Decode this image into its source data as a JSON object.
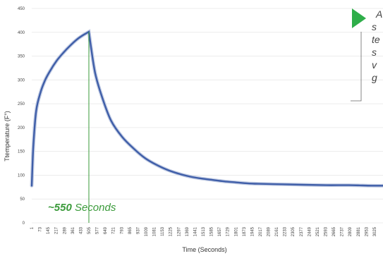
{
  "chart_data": {
    "type": "line",
    "xlabel": "Time (Seconds)",
    "ylabel": "Ttemperature (F°)",
    "ylim": [
      0,
      450
    ],
    "yticks": [
      0,
      50,
      100,
      150,
      200,
      250,
      300,
      350,
      400,
      450
    ],
    "xlim": [
      1,
      3100
    ],
    "xticks": [
      1,
      73,
      145,
      217,
      289,
      361,
      433,
      505,
      577,
      649,
      721,
      793,
      865,
      937,
      1009,
      1081,
      1153,
      1225,
      1297,
      1369,
      1441,
      1513,
      1585,
      1657,
      1729,
      1801,
      1873,
      1945,
      2017,
      2089,
      2161,
      2233,
      2305,
      2377,
      2449,
      2521,
      2593,
      2665,
      2737,
      2809,
      2881,
      2953,
      3025
    ],
    "grid": true,
    "series": [
      {
        "color": "#3f5ea8",
        "x": [
          1,
          15,
          40,
          80,
          120,
          160,
          220,
          280,
          340,
          400,
          460,
          505,
          520,
          560,
          620,
          700,
          800,
          900,
          1000,
          1100,
          1200,
          1300,
          1400,
          1500,
          1600,
          1700,
          1800,
          1900,
          2000,
          2200,
          2400,
          2600,
          2800,
          3000,
          3100
        ],
        "y": [
          78,
          160,
          235,
          275,
          300,
          318,
          340,
          357,
          372,
          385,
          395,
          401,
          375,
          315,
          265,
          215,
          180,
          156,
          136,
          122,
          111,
          103,
          97,
          93,
          90,
          87,
          85,
          83,
          82,
          81,
          80,
          79,
          79,
          78,
          78
        ]
      }
    ],
    "annotations": [
      {
        "kind": "vline",
        "x": 505,
        "color": "#3a9a3a",
        "label_prefix": "~550",
        "label_suffix": " Seconds"
      }
    ]
  },
  "callout": {
    "lines": [
      "A",
      "s",
      "te",
      "s",
      "v",
      "g"
    ],
    "marker_color": "#2fae4a"
  }
}
